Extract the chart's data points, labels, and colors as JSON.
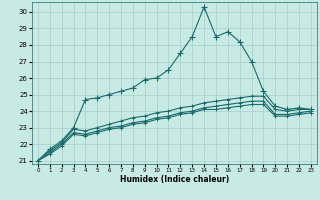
{
  "background_color": "#c8eae4",
  "grid_color": "#a8cccc",
  "line_color": "#1a6b6b",
  "xlabel": "Humidex (Indice chaleur)",
  "ylim": [
    20.8,
    30.6
  ],
  "xlim": [
    -0.5,
    23.5
  ],
  "yticks": [
    21,
    22,
    23,
    24,
    25,
    26,
    27,
    28,
    29,
    30
  ],
  "xticks": [
    0,
    1,
    2,
    3,
    4,
    5,
    6,
    7,
    8,
    9,
    10,
    11,
    12,
    13,
    14,
    15,
    16,
    17,
    18,
    19,
    20,
    21,
    22,
    23
  ],
  "series1_x": [
    0,
    1,
    2,
    3,
    4,
    5,
    6,
    7,
    8,
    9,
    10,
    11,
    12,
    13,
    14,
    15,
    16,
    17,
    18,
    19,
    20,
    21,
    22,
    23
  ],
  "series1_y": [
    21.0,
    21.7,
    22.2,
    23.0,
    24.7,
    24.8,
    25.0,
    25.2,
    25.4,
    25.9,
    26.0,
    26.5,
    27.5,
    28.5,
    30.3,
    28.5,
    28.8,
    28.2,
    27.0,
    25.2,
    24.3,
    24.1,
    24.2,
    24.1
  ],
  "series2_x": [
    0,
    1,
    2,
    3,
    4,
    5,
    6,
    7,
    8,
    9,
    10,
    11,
    12,
    13,
    14,
    15,
    16,
    17,
    18,
    19,
    20,
    21,
    22,
    23
  ],
  "series2_y": [
    21.0,
    21.6,
    22.1,
    22.9,
    22.8,
    23.0,
    23.2,
    23.4,
    23.6,
    23.7,
    23.9,
    24.0,
    24.2,
    24.3,
    24.5,
    24.6,
    24.7,
    24.8,
    24.9,
    24.9,
    24.1,
    24.0,
    24.1,
    24.1
  ],
  "series3_x": [
    0,
    1,
    2,
    3,
    4,
    5,
    6,
    7,
    8,
    9,
    10,
    11,
    12,
    13,
    14,
    15,
    16,
    17,
    18,
    19,
    20,
    21,
    22,
    23
  ],
  "series3_y": [
    21.0,
    21.5,
    22.0,
    22.7,
    22.6,
    22.8,
    23.0,
    23.1,
    23.3,
    23.4,
    23.6,
    23.7,
    23.9,
    24.0,
    24.2,
    24.3,
    24.4,
    24.5,
    24.6,
    24.6,
    23.8,
    23.8,
    23.9,
    24.0
  ],
  "series4_x": [
    0,
    1,
    2,
    3,
    4,
    5,
    6,
    7,
    8,
    9,
    10,
    11,
    12,
    13,
    14,
    15,
    16,
    17,
    18,
    19,
    20,
    21,
    22,
    23
  ],
  "series4_y": [
    21.0,
    21.4,
    21.9,
    22.6,
    22.5,
    22.7,
    22.9,
    23.0,
    23.2,
    23.3,
    23.5,
    23.6,
    23.8,
    23.9,
    24.1,
    24.1,
    24.2,
    24.3,
    24.4,
    24.4,
    23.7,
    23.7,
    23.8,
    23.9
  ]
}
